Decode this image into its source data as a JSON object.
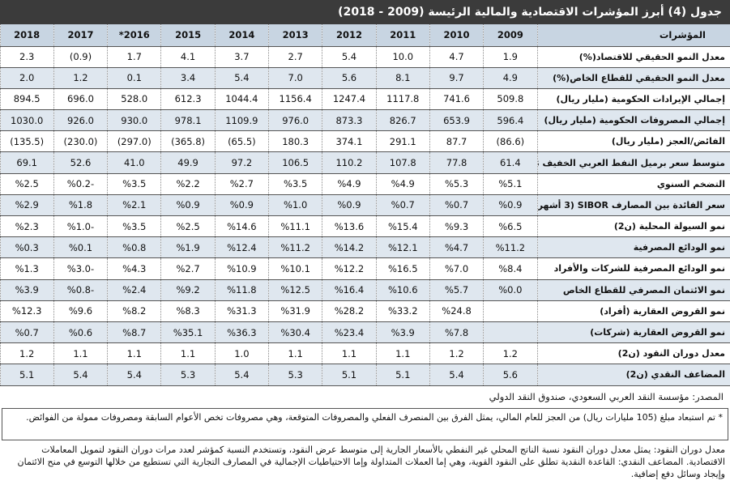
{
  "title": "جدول (4) أبرز المؤشرات الاقتصادية والمالية الرئيسة (2009 - 2018)",
  "table": {
    "header": [
      "المؤشرات",
      "2009",
      "2010",
      "2011",
      "2012",
      "2013",
      "2014",
      "2015",
      "*2016",
      "2017",
      "2018"
    ],
    "rows": [
      [
        "معدل النمو الحقيقي للاقتصاد(%)",
        "1.9",
        "4.7",
        "10.0",
        "5.4",
        "2.7",
        "3.7",
        "4.1",
        "1.7",
        "(0.9)",
        "2.3"
      ],
      [
        "معدل النمو الحقيقي للقطاع الخاص(%)",
        "4.9",
        "9.7",
        "8.1",
        "5.6",
        "7.0",
        "5.4",
        "3.4",
        "0.1",
        "1.2",
        "2.0"
      ],
      [
        "إجمالي الإيرادات الحكومية (مليار ريال)",
        "509.8",
        "741.6",
        "1117.8",
        "1247.4",
        "1156.4",
        "1044.4",
        "612.3",
        "528.0",
        "696.0",
        "894.5"
      ],
      [
        "إجمالي المصروفات الحكومية (مليار ريال)",
        "596.4",
        "653.9",
        "826.7",
        "873.3",
        "976.0",
        "1109.9",
        "978.1",
        "930.0",
        "926.0",
        "1030.0"
      ],
      [
        "الفائض/العجز (مليار ريال)",
        "(86.6)",
        "87.7",
        "291.1",
        "374.1",
        "180.3",
        "(65.5)",
        "(365.8)",
        "(297.0)",
        "(230.0)",
        "(135.5)"
      ],
      [
        "متوسط سعر برميل النفط العربي الخفيف $",
        "61.4",
        "77.8",
        "107.8",
        "110.2",
        "106.5",
        "97.2",
        "49.9",
        "41.0",
        "52.6",
        "69.1"
      ],
      [
        "التضخم السنوي",
        "%5.1",
        "%5.3",
        "%4.9",
        "%4.9",
        "%3.5",
        "%2.7",
        "%2.2",
        "%3.5",
        "%0.2-",
        "%2.5"
      ],
      [
        "سعر الفائدة بين المصارف SIBOR (3 أشهر)",
        "%0.9",
        "%0.7",
        "%0.7",
        "%0.9",
        "%1.0",
        "%0.9",
        "%0.9",
        "%2.1",
        "%1.8",
        "%2.9"
      ],
      [
        "نمو السيولة المحلية (ن2)",
        "%6.5",
        "%9.3",
        "%15.4",
        "%13.6",
        "%11.1",
        "%14.6",
        "%2.5",
        "%3.5",
        "%1.0-",
        "%2.3"
      ],
      [
        "نمو الودائع المصرفية",
        "%11.2",
        "%4.7",
        "%12.1",
        "%14.2",
        "%11.2",
        "%12.4",
        "%1.9",
        "%0.8",
        "%0.1",
        "%0.3"
      ],
      [
        "نمو الودائع المصرفية للشركات والأفراد",
        "%8.4",
        "%7.0",
        "%16.5",
        "%12.2",
        "%10.1",
        "%10.9",
        "%2.7",
        "%4.3",
        "%3.0-",
        "%1.3"
      ],
      [
        "نمو الائتمان المصرفي للقطاع الخاص",
        "%0.0",
        "%5.7",
        "%10.6",
        "%16.4",
        "%12.5",
        "%11.8",
        "%9.2",
        "%2.4",
        "%0.8-",
        "%3.9"
      ],
      [
        "نمو القروض العقارية (أفراد)",
        null,
        "%24.8",
        "%33.2",
        "%28.2",
        "%31.9",
        "%31.3",
        "%8.3",
        "%8.2",
        "%9.6",
        "%12.3"
      ],
      [
        "نمو القروض العقارية (شركات)",
        null,
        "%7.8",
        "%3.9",
        "%23.4",
        "%30.4",
        "%36.3",
        "%35.1",
        "%8.7",
        "%0.6",
        "%0.7"
      ],
      [
        "معدل دوران النقود (ن2)",
        "1.2",
        "1.2",
        "1.1",
        "1.1",
        "1.1",
        "1.0",
        "1.1",
        "1.1",
        "1.1",
        "1.2"
      ],
      [
        "المضاعف النقدي (ن2)",
        "5.6",
        "5.4",
        "5.1",
        "5.1",
        "5.3",
        "5.4",
        "5.3",
        "5.4",
        "5.4",
        "5.1"
      ]
    ]
  },
  "footer": {
    "source": "المصدر: مؤسسة النقد العربي السعودي، صندوق النقد الدولي",
    "note": "* تم استبعاد مبلغ (105 مليارات ريال) من العجز للعام المالي، يمثل الفرق بين المنصرف الفعلي والمصروفات المتوقعة، وهي مصروفات تخص الأعوام السابقة ومصروفات ممولة من الفوائض.",
    "definitions": "معدل دوران النقود: يمثل معدل دوران النقود نسبة الناتج المحلي غير النفطي بالأسعار الجارية إلى متوسط عرض النقود، وتستخدم النسبة كمؤشر لعدد مرات دوران النقود لتمويل المعاملات الاقتصادية. المضاعف النقدي: القاعدة النقدية تطلق على النقود القوية، وهي إما العملات المتداولة وإما الاحتياطيات الإجمالية في المصارف التجارية التي تستطيع من خلالها التوسع في منح الائتمان وإيجاد وسائل دفع إضافية."
  }
}
